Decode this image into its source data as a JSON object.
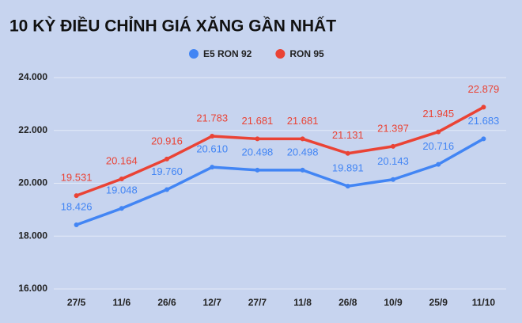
{
  "chart_data": {
    "type": "line",
    "title": "10 KỲ ĐIỀU CHỈNH GIÁ XĂNG GẦN NHẤT",
    "categories": [
      "27/5",
      "11/6",
      "26/6",
      "12/7",
      "27/7",
      "11/8",
      "26/8",
      "10/9",
      "25/9",
      "11/10"
    ],
    "series": [
      {
        "name": "E5 RON 92",
        "color": "#4285f4",
        "values": [
          18426,
          19048,
          19760,
          20610,
          20498,
          20498,
          19891,
          20143,
          20716,
          21683
        ],
        "value_labels": [
          "18.426",
          "19.048",
          "19.760",
          "20.610",
          "20.498",
          "20.498",
          "19.891",
          "20.143",
          "20.716",
          "21.683"
        ]
      },
      {
        "name": "RON 95",
        "color": "#ea4335",
        "values": [
          19531,
          20164,
          20916,
          21783,
          21681,
          21681,
          21131,
          21397,
          21945,
          22879
        ],
        "value_labels": [
          "19.531",
          "20.164",
          "20.916",
          "21.783",
          "21.681",
          "21.681",
          "21.131",
          "21.397",
          "21.945",
          "22.879"
        ]
      }
    ],
    "ylim": [
      16000,
      24000
    ],
    "yticks": [
      {
        "value": 16000,
        "label": "16.000"
      },
      {
        "value": 18000,
        "label": "18.000"
      },
      {
        "value": 20000,
        "label": "20.000"
      },
      {
        "value": 22000,
        "label": "22.000"
      },
      {
        "value": 24000,
        "label": "24.000"
      }
    ],
    "grid": true,
    "legend": "top"
  }
}
